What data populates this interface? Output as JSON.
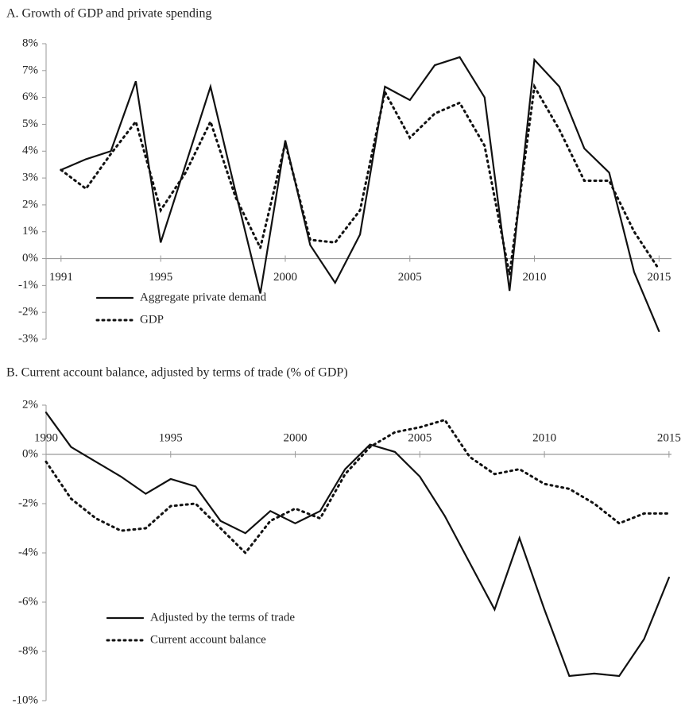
{
  "chart_data": [
    {
      "type": "line",
      "title": "A. Growth of GDP and private spending",
      "x": [
        1991,
        1992,
        1993,
        1994,
        1995,
        1996,
        1997,
        1998,
        1999,
        2000,
        2001,
        2002,
        2003,
        2004,
        2005,
        2006,
        2007,
        2008,
        2009,
        2010,
        2011,
        2012,
        2013,
        2014,
        2015
      ],
      "series": [
        {
          "name": "Aggregate private demand",
          "color": "#111111",
          "style": "solid",
          "values": [
            3.3,
            3.7,
            4.0,
            6.6,
            0.6,
            3.5,
            6.4,
            2.5,
            -1.3,
            4.4,
            0.5,
            -0.9,
            0.9,
            6.4,
            5.9,
            7.2,
            7.5,
            6.0,
            -1.2,
            7.4,
            6.4,
            4.1,
            3.2,
            -0.5,
            -2.7
          ]
        },
        {
          "name": "GDP",
          "color": "#111111",
          "style": "dotted",
          "values": [
            3.3,
            2.6,
            3.9,
            5.1,
            1.8,
            3.2,
            5.1,
            2.3,
            0.4,
            4.3,
            0.7,
            0.6,
            1.8,
            6.2,
            4.5,
            5.4,
            5.8,
            4.2,
            -0.6,
            6.4,
            4.8,
            2.9,
            2.9,
            1.0,
            -0.4
          ]
        }
      ],
      "xlim": [
        1990.4,
        2015.5
      ],
      "xticks": [
        1991,
        1995,
        2000,
        2005,
        2010,
        2015
      ],
      "ylim": [
        -3,
        8
      ],
      "yticks": [
        {
          "value": 8,
          "label": "8%"
        },
        {
          "value": 7,
          "label": "7%"
        },
        {
          "value": 6,
          "label": "6%"
        },
        {
          "value": 5,
          "label": "5%"
        },
        {
          "value": 4,
          "label": "4%"
        },
        {
          "value": 3,
          "label": "3%"
        },
        {
          "value": 2,
          "label": "2%"
        },
        {
          "value": 1,
          "label": "1%"
        },
        {
          "value": 0,
          "label": "0%"
        },
        {
          "value": -1,
          "label": "-1%"
        },
        {
          "value": -2,
          "label": "-2%"
        },
        {
          "value": -3,
          "label": "-3%"
        }
      ],
      "xtick_side": "below",
      "legend": "lower left"
    },
    {
      "type": "line",
      "title": "B. Current account balance, adjusted by terms of trade (% of GDP)",
      "x": [
        1990,
        1991,
        1992,
        1993,
        1994,
        1995,
        1996,
        1997,
        1998,
        1999,
        2000,
        2001,
        2002,
        2003,
        2004,
        2005,
        2006,
        2007,
        2008,
        2009,
        2010,
        2011,
        2012,
        2013,
        2014,
        2015
      ],
      "series": [
        {
          "name": "Adjusted by the terms of trade",
          "color": "#111111",
          "style": "solid",
          "values": [
            1.7,
            0.3,
            -0.3,
            -0.9,
            -1.6,
            -1.0,
            -1.3,
            -2.7,
            -3.2,
            -2.3,
            -2.8,
            -2.3,
            -0.6,
            0.4,
            0.1,
            -0.9,
            -2.5,
            -4.4,
            -6.3,
            -3.4,
            -6.3,
            -9.0,
            -8.9,
            -9.0,
            -7.5,
            -5.0
          ]
        },
        {
          "name": "Current account balance",
          "color": "#111111",
          "style": "dotted",
          "values": [
            -0.3,
            -1.8,
            -2.6,
            -3.1,
            -3.0,
            -2.1,
            -2.0,
            -3.0,
            -4.0,
            -2.7,
            -2.2,
            -2.6,
            -0.8,
            0.3,
            0.9,
            1.1,
            1.4,
            -0.1,
            -0.8,
            -0.6,
            -1.2,
            -1.4,
            -2.0,
            -2.8,
            -2.4,
            -2.4
          ]
        }
      ],
      "xlim": [
        1990,
        2015.1
      ],
      "xticks": [
        1990,
        1995,
        2000,
        2005,
        2010,
        2015
      ],
      "ylim": [
        -10,
        2
      ],
      "yticks": [
        {
          "value": 2,
          "label": "2%"
        },
        {
          "value": 0,
          "label": "0%"
        },
        {
          "value": -2,
          "label": "-2%"
        },
        {
          "value": -4,
          "label": "-4%"
        },
        {
          "value": -6,
          "label": "-6%"
        },
        {
          "value": -8,
          "label": "-8%"
        },
        {
          "value": -10,
          "label": "-10%"
        }
      ],
      "xtick_side": "above",
      "legend": "lower left"
    }
  ]
}
